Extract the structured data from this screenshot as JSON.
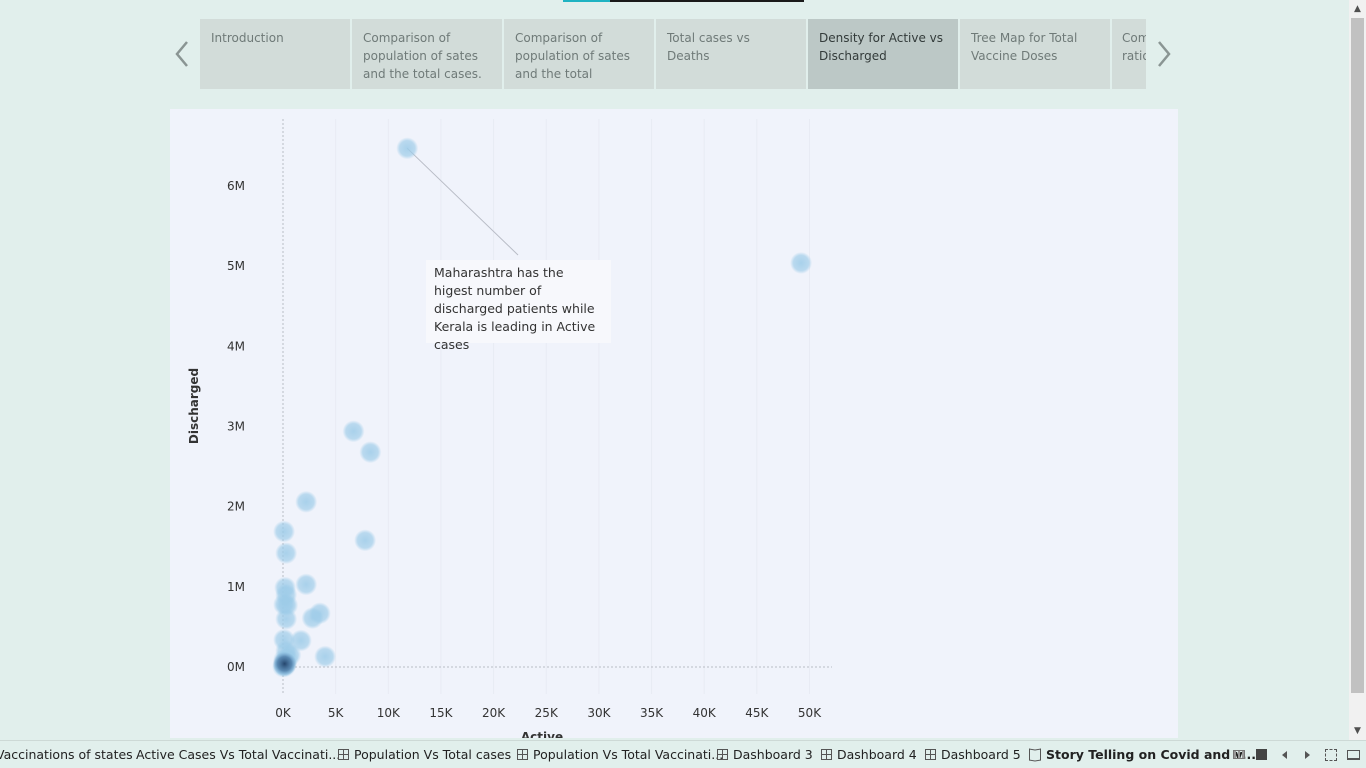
{
  "story": {
    "tabs": [
      {
        "label": "Introduction",
        "active": false
      },
      {
        "label": "Comparison of population of sates and the total cases.",
        "active": false
      },
      {
        "label": "Comparison of population of sates and the total",
        "active": false
      },
      {
        "label": "Total cases vs Deaths",
        "active": false
      },
      {
        "label": "Density for Active vs Discharged",
        "active": true
      },
      {
        "label": "Tree Map for Total Vaccine Doses",
        "active": false
      },
      {
        "label": "Com ratio",
        "active": false
      }
    ],
    "prev_icon": "chevron-left-icon",
    "next_icon": "chevron-right-icon"
  },
  "annotation": {
    "text": "Maharashtra has the higest number of discharged patients while Kerala is leading in Active cases"
  },
  "chart_data": {
    "type": "scatter",
    "title": "",
    "xlabel": "Active",
    "ylabel": "Discharged",
    "x_ticks": [
      "0K",
      "5K",
      "10K",
      "15K",
      "20K",
      "25K",
      "30K",
      "35K",
      "40K",
      "45K",
      "50K"
    ],
    "y_ticks": [
      "0M",
      "1M",
      "2M",
      "3M",
      "4M",
      "5M",
      "6M"
    ],
    "xlim": [
      0,
      52000
    ],
    "ylim": [
      -300000,
      6750000
    ],
    "grid": false,
    "mark_style": "density",
    "point_color": "#9ccbe8",
    "density_color": "#1f3f66",
    "points": [
      {
        "x": 11800,
        "y": 6470000
      },
      {
        "x": 49200,
        "y": 5040000
      },
      {
        "x": 6700,
        "y": 2940000
      },
      {
        "x": 8300,
        "y": 2680000
      },
      {
        "x": 2200,
        "y": 2060000
      },
      {
        "x": 7800,
        "y": 1580000
      },
      {
        "x": 100,
        "y": 1690000
      },
      {
        "x": 300,
        "y": 1420000
      },
      {
        "x": 2200,
        "y": 1030000
      },
      {
        "x": 200,
        "y": 990000
      },
      {
        "x": 300,
        "y": 900000
      },
      {
        "x": 100,
        "y": 780000
      },
      {
        "x": 400,
        "y": 770000
      },
      {
        "x": 3500,
        "y": 670000
      },
      {
        "x": 2800,
        "y": 610000
      },
      {
        "x": 300,
        "y": 600000
      },
      {
        "x": 100,
        "y": 340000
      },
      {
        "x": 1700,
        "y": 330000
      },
      {
        "x": 300,
        "y": 200000
      },
      {
        "x": 700,
        "y": 150000
      },
      {
        "x": 4000,
        "y": 130000
      },
      {
        "x": 100,
        "y": 90000
      },
      {
        "x": 200,
        "y": 60000
      },
      {
        "x": 300,
        "y": 40000
      },
      {
        "x": 100,
        "y": 20000
      },
      {
        "x": 200,
        "y": 10000
      },
      {
        "x": 0,
        "y": 5000
      },
      {
        "x": 400,
        "y": 100000
      }
    ]
  },
  "sheets": [
    {
      "label": "Vaccinations of states",
      "icon": "none",
      "active": false
    },
    {
      "label": "Active Cases Vs Total Vaccinati...",
      "icon": "none",
      "active": false
    },
    {
      "label": "Population Vs Total cases",
      "icon": "dashboard-icon",
      "active": false
    },
    {
      "label": "Population Vs Total Vaccinati...",
      "icon": "dashboard-icon",
      "active": false
    },
    {
      "label": "Dashboard 3",
      "icon": "dashboard-icon",
      "active": false
    },
    {
      "label": "Dashboard 4",
      "icon": "dashboard-icon",
      "active": false
    },
    {
      "label": "Dashboard 5",
      "icon": "dashboard-icon",
      "active": false
    },
    {
      "label": "Story Telling on Covid and v...",
      "icon": "story-icon",
      "active": true
    }
  ]
}
